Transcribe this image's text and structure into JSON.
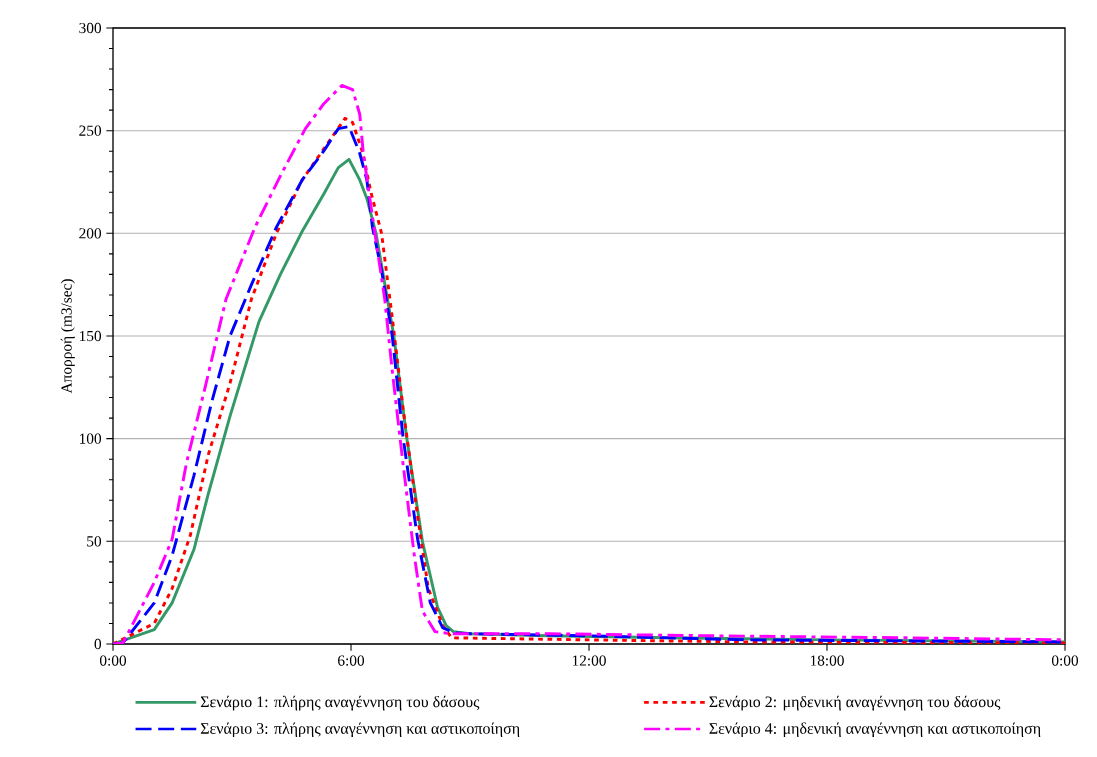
{
  "chart_data": {
    "type": "line",
    "ylabel": "Απορροή (m3/sec)",
    "xlim": [
      0,
      24
    ],
    "xticks": [
      {
        "value": 0,
        "label": "0:00"
      },
      {
        "value": 6,
        "label": "6:00"
      },
      {
        "value": 12,
        "label": "12:00"
      },
      {
        "value": 18,
        "label": "18:00"
      },
      {
        "value": 24,
        "label": "0:00"
      }
    ],
    "ylim": [
      0,
      300
    ],
    "yticks": [
      0,
      50,
      100,
      150,
      200,
      250,
      300
    ],
    "grid": "y",
    "legend": "bottom",
    "series": [
      {
        "name": "Σενάριο 1: πλήρης αναγέννηση του δάσους",
        "color": "#339966",
        "line_style": "solid",
        "x": [
          0,
          1.04,
          1.49,
          2.04,
          2.4,
          2.95,
          3.68,
          4.22,
          4.77,
          5.31,
          5.68,
          5.95,
          6.22,
          6.4,
          6.63,
          7.08,
          7.4,
          7.8,
          8.18,
          8.4,
          8.58,
          9,
          11,
          14,
          18,
          24
        ],
        "values": [
          0,
          7,
          20,
          46,
          73,
          111,
          157,
          180,
          201,
          219,
          232,
          236,
          226,
          217,
          200,
          150,
          101,
          50,
          18,
          9,
          6,
          5,
          4,
          3,
          2,
          1
        ]
      },
      {
        "name": "Σενάριο 2: μηδενική αναγέννηση του δάσους",
        "color": "#ff0000",
        "line_style": "dotted",
        "x": [
          0,
          1.04,
          1.49,
          1.95,
          2.4,
          2.95,
          3.49,
          4.12,
          4.77,
          5.31,
          5.85,
          6.04,
          6.3,
          6.49,
          6.77,
          7.04,
          7.31,
          7.68,
          7.95,
          8.31,
          8.54,
          12,
          16,
          24
        ],
        "values": [
          0,
          10,
          27,
          53,
          92,
          127,
          168,
          200,
          226,
          241,
          256,
          254,
          239,
          221,
          200,
          159,
          115,
          62,
          27,
          9,
          3,
          2,
          1,
          0.5
        ]
      },
      {
        "name": "Σενάριο 3: πλήρης αναγέννηση και αστικοποίηση",
        "color": "#0000ff",
        "line_style": "dashed",
        "x": [
          0,
          0.25,
          1.04,
          1.49,
          2.04,
          2.49,
          2.95,
          3.49,
          4.12,
          4.77,
          5.31,
          5.68,
          5.95,
          6.22,
          6.4,
          6.54,
          6.77,
          7.04,
          7.31,
          7.68,
          8.0,
          8.31,
          8.58,
          9,
          12,
          14,
          16,
          20,
          24
        ],
        "values": [
          0,
          0.5,
          20,
          43,
          82,
          118,
          150,
          175,
          203,
          226,
          240,
          251,
          252,
          239,
          226,
          203,
          182,
          150,
          101,
          51,
          20,
          8,
          5.5,
          5,
          4,
          3,
          2,
          1.5,
          1
        ]
      },
      {
        "name": "Σενάριο 4: μηδενική αναγέννηση και αστικοποίηση",
        "color": "#ff00ff",
        "line_style": "dashdot",
        "x": [
          0,
          0.25,
          1.04,
          1.49,
          1.85,
          2.31,
          2.85,
          3.58,
          4.22,
          4.85,
          5.31,
          5.77,
          6.04,
          6.22,
          6.31,
          6.58,
          6.85,
          7.04,
          7.31,
          7.59,
          7.8,
          8.12,
          8.5,
          11,
          15,
          20,
          24
        ],
        "values": [
          0,
          0.5,
          30,
          51,
          88,
          124,
          168,
          203,
          228,
          251,
          263,
          272,
          270,
          258,
          239,
          203,
          168,
          133,
          88,
          44,
          16,
          6,
          5,
          5,
          4,
          3,
          2
        ]
      }
    ]
  }
}
